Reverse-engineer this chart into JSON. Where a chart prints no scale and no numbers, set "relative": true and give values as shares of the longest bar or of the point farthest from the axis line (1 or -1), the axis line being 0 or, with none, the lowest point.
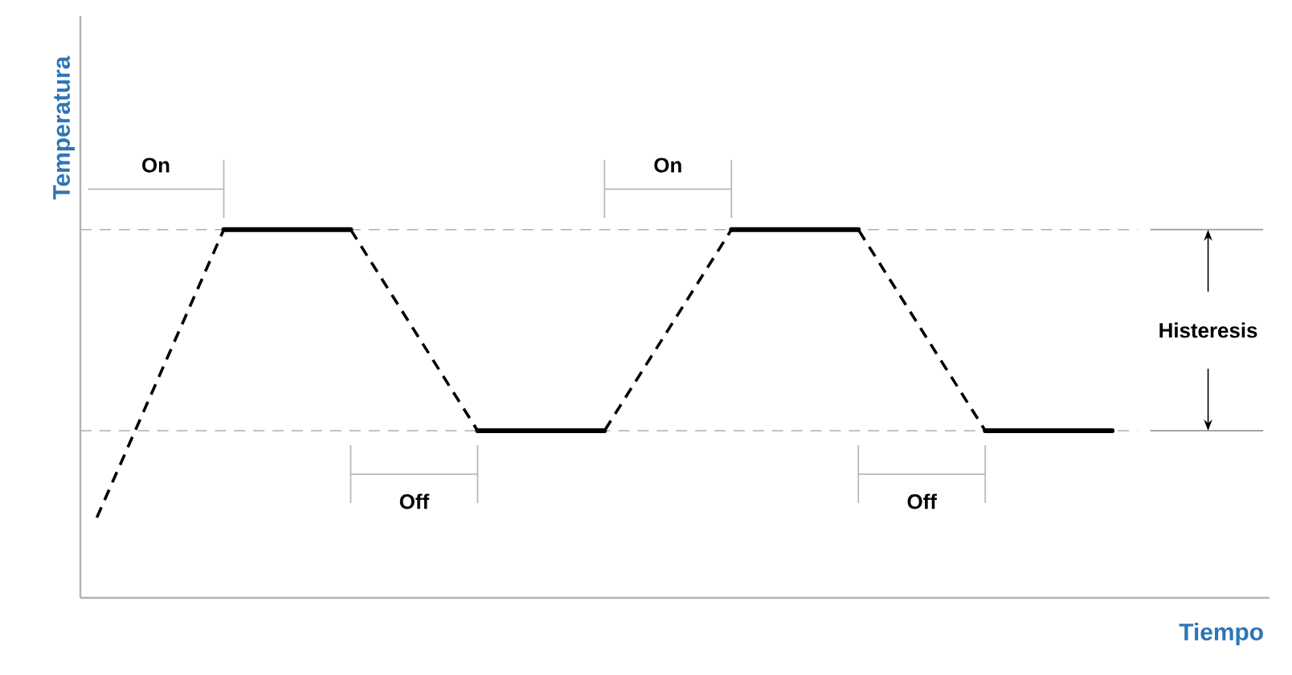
{
  "chart_data": {
    "type": "line",
    "relative": true,
    "xlabel": "Tiempo",
    "ylabel": "Temperatura",
    "categories": [
      null,
      null,
      null,
      null,
      null,
      null,
      null,
      null,
      null
    ],
    "series": [
      {
        "color": "#000000",
        "line_style": "dashed",
        "values": [
          0.218,
          1,
          1,
          0.454,
          0.454,
          1,
          1,
          0.454,
          0.454
        ]
      }
    ],
    "ref_lines": [
      {
        "axis": "y",
        "value": 1,
        "color": "#b0b0b0",
        "line_style": "dashed"
      },
      {
        "axis": "y",
        "value": 0.454,
        "color": "#b0b0b0",
        "line_style": "dashed"
      }
    ],
    "annotations": [
      "On",
      "Off",
      "On",
      "Off",
      "Histeresis"
    ]
  }
}
